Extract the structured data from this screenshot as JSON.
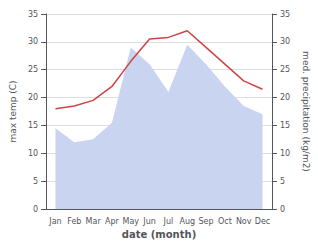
{
  "chart_data": {
    "type": "line",
    "xlabel": "date (month)",
    "ylabel": "max temp (C)",
    "y2label": "med. precipitation (kg/m2)",
    "categories": [
      "Jan",
      "Feb",
      "Mar",
      "Apr",
      "May",
      "Jun",
      "Jul",
      "Aug",
      "Sep",
      "Oct",
      "Nov",
      "Dec"
    ],
    "series": [
      {
        "type": "area",
        "axis": "y2",
        "color": "#c8d4f0",
        "values": [
          14.5,
          12.0,
          12.5,
          15.5,
          29.0,
          26.0,
          21.0,
          29.5,
          26.0,
          22.0,
          18.5,
          17.0
        ]
      },
      {
        "type": "line",
        "color": "#cc4444",
        "values": [
          18.0,
          18.5,
          19.5,
          22.0,
          26.5,
          30.5,
          30.8,
          32.0,
          29.0,
          26.0,
          23.0,
          21.5
        ]
      }
    ],
    "ylim": [
      0,
      35
    ],
    "yticks": [
      0,
      5,
      10,
      15,
      20,
      25,
      30,
      35
    ],
    "y2lim": [
      0,
      35
    ],
    "y2ticks": [
      0,
      5,
      10,
      15,
      20,
      25,
      30,
      35
    ],
    "grid": true
  }
}
